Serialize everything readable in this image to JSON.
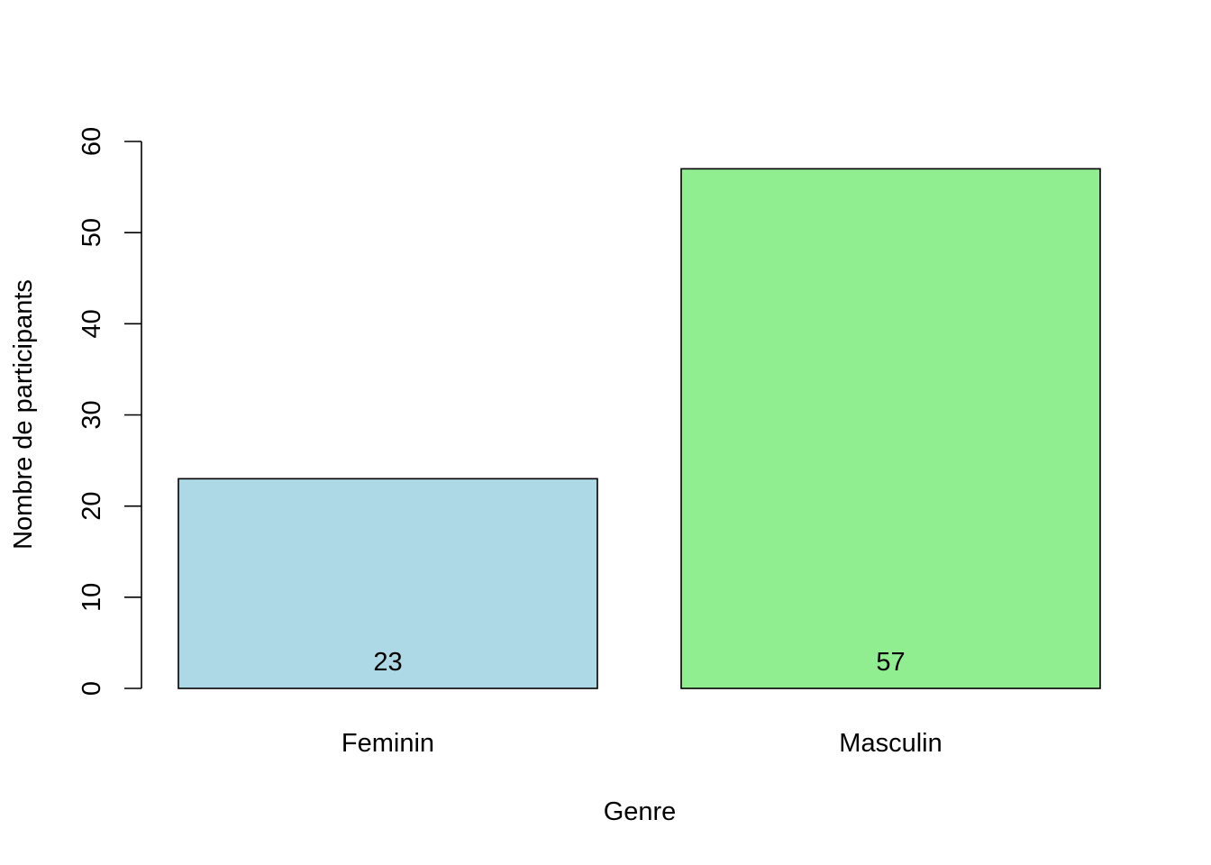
{
  "chart_data": {
    "type": "bar",
    "title": "",
    "xlabel": "Genre",
    "ylabel": "Nombre de participants",
    "categories": [
      "Feminin",
      "Masculin"
    ],
    "values": [
      23,
      57
    ],
    "data_labels": [
      "23",
      "57"
    ],
    "colors": [
      "#add8e6",
      "#90ee90"
    ],
    "ylim": [
      0,
      60
    ],
    "yticks": [
      0,
      10,
      20,
      30,
      40,
      50,
      60
    ],
    "ytick_labels": [
      "0",
      "10",
      "20",
      "30",
      "40",
      "50",
      "60"
    ],
    "grid": false,
    "legend": "none"
  }
}
